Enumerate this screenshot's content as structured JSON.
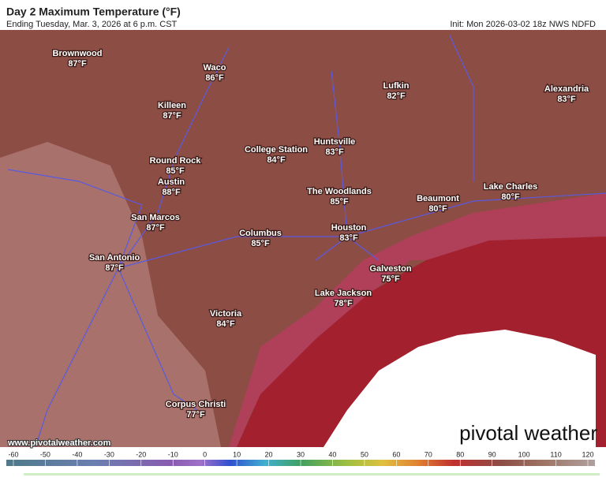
{
  "header": {
    "title": "Day 2 Maximum Temperature (°F)",
    "subtitle": "Ending Tuesday, Mar. 3, 2026 at 6 p.m. CST",
    "init": "Init: Mon 2026-03-02 18z NWS NDFD"
  },
  "cities": [
    {
      "name": "Brownwood",
      "temp": "87°F"
    },
    {
      "name": "Waco",
      "temp": "86°F"
    },
    {
      "name": "Killeen",
      "temp": "87°F"
    },
    {
      "name": "Round Rock",
      "temp": "85°F"
    },
    {
      "name": "Austin",
      "temp": "88°F"
    },
    {
      "name": "San Marcos",
      "temp": "87°F"
    },
    {
      "name": "San Antonio",
      "temp": "87°F"
    },
    {
      "name": "Lufkin",
      "temp": "82°F"
    },
    {
      "name": "Alexandria",
      "temp": "83°F"
    },
    {
      "name": "Huntsville",
      "temp": "83°F"
    },
    {
      "name": "College Station",
      "temp": "84°F"
    },
    {
      "name": "The Woodlands",
      "temp": "85°F"
    },
    {
      "name": "Beaumont",
      "temp": "80°F"
    },
    {
      "name": "Lake Charles",
      "temp": "80°F"
    },
    {
      "name": "Columbus",
      "temp": "85°F"
    },
    {
      "name": "Houston",
      "temp": "83°F"
    },
    {
      "name": "Galveston",
      "temp": "75°F"
    },
    {
      "name": "Lake Jackson",
      "temp": "78°F"
    },
    {
      "name": "Victoria",
      "temp": "84°F"
    },
    {
      "name": "Corpus Christi",
      "temp": "77°F"
    }
  ],
  "watermark": "www.pivotalweather.com",
  "logo": "pivotal weather",
  "colorbar": {
    "ticks": [
      -60,
      -50,
      -40,
      -30,
      -20,
      -10,
      0,
      10,
      20,
      30,
      40,
      50,
      60,
      70,
      80,
      90,
      100,
      110,
      120
    ]
  }
}
